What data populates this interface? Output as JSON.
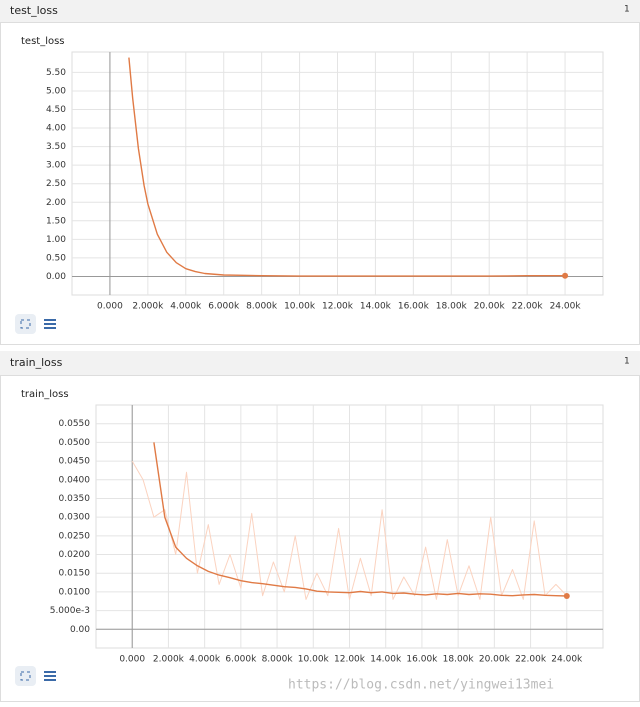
{
  "panels": [
    {
      "header": "test_loss",
      "count": "1"
    },
    {
      "header": "train_loss",
      "count": "1"
    }
  ],
  "watermark": "https://blog.csdn.net/yingwei13mei",
  "chart_data": [
    {
      "type": "line",
      "title": "test_loss",
      "x": [
        1000,
        1200,
        1500,
        1800,
        2000,
        2500,
        3000,
        3500,
        4000,
        4500,
        5000,
        6000,
        7000,
        8000,
        10000,
        12000,
        14000,
        16000,
        18000,
        20000,
        22000,
        24000
      ],
      "series": [
        {
          "color": "#e07a45",
          "values": [
            5.9,
            4.8,
            3.45,
            2.45,
            1.95,
            1.14,
            0.65,
            0.37,
            0.21,
            0.13,
            0.08,
            0.04,
            0.03,
            0.02,
            0.01,
            0.01,
            0.01,
            0.01,
            0.01,
            0.01,
            0.02,
            0.02
          ]
        }
      ],
      "xlim": [
        -2000,
        26000
      ],
      "ylim": [
        -0.5,
        6.05
      ],
      "xticks": [
        {
          "value": 0,
          "label": "0.000"
        },
        {
          "value": 2000,
          "label": "2.000k"
        },
        {
          "value": 4000,
          "label": "4.000k"
        },
        {
          "value": 6000,
          "label": "6.000k"
        },
        {
          "value": 8000,
          "label": "8.000k"
        },
        {
          "value": 10000,
          "label": "10.00k"
        },
        {
          "value": 12000,
          "label": "12.00k"
        },
        {
          "value": 14000,
          "label": "14.00k"
        },
        {
          "value": 16000,
          "label": "16.00k"
        },
        {
          "value": 18000,
          "label": "18.00k"
        },
        {
          "value": 20000,
          "label": "20.00k"
        },
        {
          "value": 22000,
          "label": "22.00k"
        },
        {
          "value": 24000,
          "label": "24.00k"
        }
      ],
      "yticks": [
        {
          "value": 0,
          "label": "0.00"
        },
        {
          "value": 0.5,
          "label": "0.50"
        },
        {
          "value": 1,
          "label": "1.00"
        },
        {
          "value": 1.5,
          "label": "1.50"
        },
        {
          "value": 2,
          "label": "2.00"
        },
        {
          "value": 2.5,
          "label": "2.50"
        },
        {
          "value": 3,
          "label": "3.00"
        },
        {
          "value": 3.5,
          "label": "3.50"
        },
        {
          "value": 4,
          "label": "4.00"
        },
        {
          "value": 4.5,
          "label": "4.50"
        },
        {
          "value": 5,
          "label": "5.00"
        },
        {
          "value": 5.5,
          "label": "5.50"
        }
      ],
      "grid": true
    },
    {
      "type": "line",
      "title": "train_loss",
      "x": [
        0,
        600,
        1200,
        1800,
        2400,
        3000,
        3600,
        4200,
        4800,
        5400,
        6000,
        6600,
        7200,
        7800,
        8400,
        9000,
        9600,
        10200,
        10800,
        11400,
        12000,
        12600,
        13200,
        13800,
        14400,
        15000,
        15600,
        16200,
        16800,
        17400,
        18000,
        18600,
        19200,
        19800,
        20400,
        21000,
        21600,
        22200,
        22800,
        23400,
        24000
      ],
      "series": [
        {
          "color": "#fbd3c0",
          "values": [
            0.045,
            0.04,
            0.03,
            0.032,
            0.02,
            0.042,
            0.015,
            0.028,
            0.012,
            0.02,
            0.011,
            0.031,
            0.009,
            0.018,
            0.01,
            0.025,
            0.008,
            0.015,
            0.009,
            0.027,
            0.008,
            0.019,
            0.009,
            0.032,
            0.008,
            0.014,
            0.009,
            0.022,
            0.008,
            0.024,
            0.009,
            0.017,
            0.008,
            0.03,
            0.009,
            0.016,
            0.008,
            0.029,
            0.009,
            0.012,
            0.009
          ]
        },
        {
          "color": "#e07a45",
          "values": [
            null,
            null,
            0.05,
            0.03,
            0.022,
            0.019,
            0.017,
            0.0155,
            0.0145,
            0.0138,
            0.013,
            0.0125,
            0.0122,
            0.0118,
            0.0114,
            0.0112,
            0.0108,
            0.0102,
            0.01,
            0.0099,
            0.0098,
            0.0101,
            0.0098,
            0.01,
            0.0096,
            0.0097,
            0.0094,
            0.0092,
            0.0095,
            0.0093,
            0.0096,
            0.0093,
            0.0095,
            0.0094,
            0.0091,
            0.009,
            0.0092,
            0.0093,
            0.0091,
            0.009,
            0.0089
          ]
        }
      ],
      "xlim": [
        -2000,
        26000
      ],
      "ylim": [
        -0.005,
        0.06
      ],
      "xticks": [
        {
          "value": 0,
          "label": "0.000"
        },
        {
          "value": 2000,
          "label": "2.000k"
        },
        {
          "value": 4000,
          "label": "4.000k"
        },
        {
          "value": 6000,
          "label": "6.000k"
        },
        {
          "value": 8000,
          "label": "8.000k"
        },
        {
          "value": 10000,
          "label": "10.00k"
        },
        {
          "value": 12000,
          "label": "12.00k"
        },
        {
          "value": 14000,
          "label": "14.00k"
        },
        {
          "value": 16000,
          "label": "16.00k"
        },
        {
          "value": 18000,
          "label": "18.00k"
        },
        {
          "value": 20000,
          "label": "20.00k"
        },
        {
          "value": 22000,
          "label": "22.00k"
        },
        {
          "value": 24000,
          "label": "24.00k"
        }
      ],
      "yticks": [
        {
          "value": 0,
          "label": "0.00"
        },
        {
          "value": 0.005,
          "label": "5.000e-3"
        },
        {
          "value": 0.01,
          "label": "0.0100"
        },
        {
          "value": 0.015,
          "label": "0.0150"
        },
        {
          "value": 0.02,
          "label": "0.0200"
        },
        {
          "value": 0.025,
          "label": "0.0250"
        },
        {
          "value": 0.03,
          "label": "0.0300"
        },
        {
          "value": 0.035,
          "label": "0.0350"
        },
        {
          "value": 0.04,
          "label": "0.0400"
        },
        {
          "value": 0.045,
          "label": "0.0450"
        },
        {
          "value": 0.05,
          "label": "0.0500"
        },
        {
          "value": 0.055,
          "label": "0.0550"
        }
      ],
      "grid": true
    }
  ]
}
